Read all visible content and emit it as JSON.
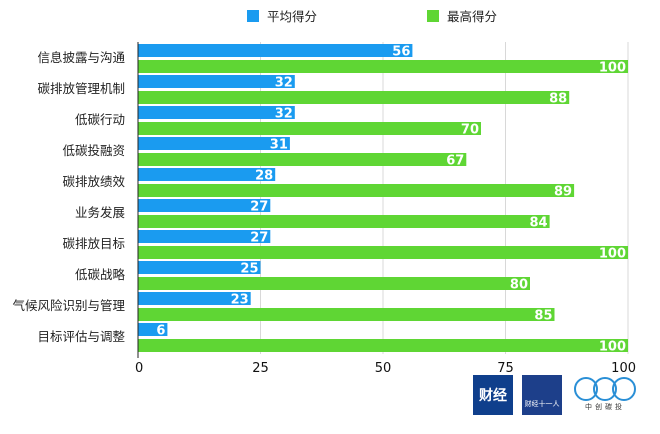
{
  "chart_data": {
    "type": "bar",
    "orientation": "horizontal",
    "title": "",
    "xlabel": "",
    "ylabel": "",
    "xlim": [
      0,
      100
    ],
    "xticks": [
      0,
      25,
      50,
      75,
      100
    ],
    "grid": true,
    "legend_position": "top",
    "categories": [
      "信息披露与沟通",
      "碳排放管理机制",
      "低碳行动",
      "低碳投融资",
      "碳排放绩效",
      "业务发展",
      "碳排放目标",
      "低碳战略",
      "气候风险识别与管理",
      "目标评估与调整"
    ],
    "series": [
      {
        "name": "平均得分",
        "color": "#1a9bf0",
        "values": [
          56,
          32,
          32,
          31,
          28,
          27,
          27,
          25,
          23,
          6
        ]
      },
      {
        "name": "最高得分",
        "color": "#5fd634",
        "values": [
          100,
          88,
          70,
          67,
          89,
          84,
          100,
          80,
          85,
          100
        ]
      }
    ]
  },
  "logos": [
    {
      "name": "财经",
      "color": "#0f3f8c"
    },
    {
      "name": "财经十一人",
      "color": "#1d3f8a"
    },
    {
      "name": "中创碳投",
      "color": "#2a8fd6"
    }
  ]
}
